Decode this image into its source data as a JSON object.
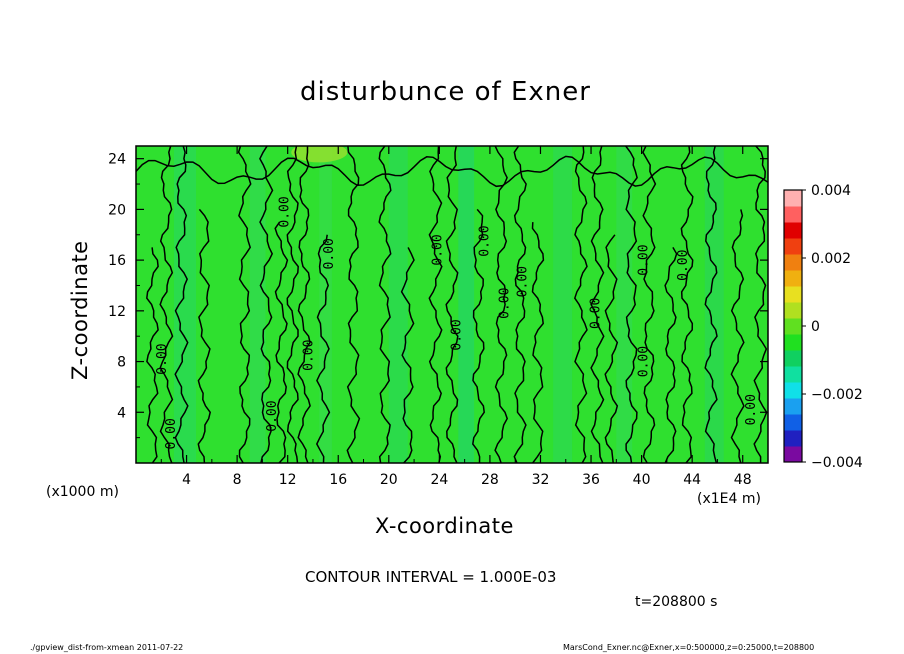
{
  "chart_data": {
    "type": "heatmap",
    "title": "disturbunce of Exner",
    "xlabel": "X-coordinate",
    "ylabel": "Z-coordinate",
    "x_unit_label": "(x1000 m)",
    "x_scale_label": "(x1E4 m)",
    "xlim": [
      0,
      50
    ],
    "ylim": [
      0,
      25
    ],
    "x_ticks": [
      "4",
      "8",
      "12",
      "16",
      "20",
      "24",
      "28",
      "32",
      "36",
      "40",
      "44",
      "48"
    ],
    "y_ticks": [
      "4",
      "8",
      "12",
      "16",
      "20",
      "24"
    ],
    "colorbar": {
      "range": [
        -0.004,
        0.004
      ],
      "tick_labels": [
        "0.004",
        "0.002",
        "0",
        "−0.002",
        "−0.004"
      ],
      "colors": [
        "#7a0aa0",
        "#2020c0",
        "#1060e6",
        "#1aa0f0",
        "#10e0e8",
        "#10e0a0",
        "#10d060",
        "#20e020",
        "#60e020",
        "#b0e020",
        "#e8e020",
        "#f0b010",
        "#f08010",
        "#f04010",
        "#e00000",
        "#ff6060",
        "#ffb0b0"
      ]
    },
    "contour_interval": "CONTOUR INTERVAL = 1.000E-03",
    "contour_labels": [
      {
        "text": "0.00",
        "x": 2.1,
        "z": 8.2
      },
      {
        "text": "0.00",
        "x": 2.8,
        "z": 2.3
      },
      {
        "text": "0.00",
        "x": 11.8,
        "z": 19.8
      },
      {
        "text": "0.00",
        "x": 10.8,
        "z": 3.7
      },
      {
        "text": "0.00",
        "x": 13.7,
        "z": 8.5
      },
      {
        "text": "0.00",
        "x": 15.3,
        "z": 16.5
      },
      {
        "text": "0.00",
        "x": 23.9,
        "z": 16.8
      },
      {
        "text": "0.00",
        "x": 25.4,
        "z": 10.1
      },
      {
        "text": "0.00",
        "x": 27.6,
        "z": 17.5
      },
      {
        "text": "0.00",
        "x": 29.2,
        "z": 12.6
      },
      {
        "text": "0.00",
        "x": 30.6,
        "z": 14.3
      },
      {
        "text": "0.00",
        "x": 36.4,
        "z": 11.8
      },
      {
        "text": "0.00",
        "x": 40.2,
        "z": 16.0
      },
      {
        "text": "0.00",
        "x": 40.2,
        "z": 8.0
      },
      {
        "text": "0.00",
        "x": 43.3,
        "z": 15.6
      },
      {
        "text": "0.00",
        "x": 48.7,
        "z": 4.2
      }
    ],
    "time_label": "t=208800 s"
  },
  "footer": {
    "left": "./gpview_dist-from-xmean  2011-07-22",
    "right": "MarsCond_Exner.nc@Exner,x=0:500000,z=0:25000,t=208800"
  }
}
